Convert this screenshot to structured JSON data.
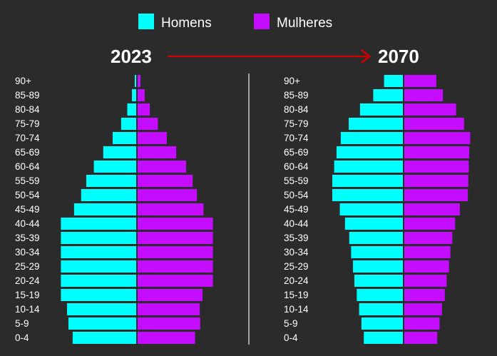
{
  "colors": {
    "background": "#2b2b2b",
    "men": "#00ffff",
    "women": "#c40cff",
    "arrow": "#d40000",
    "divider": "#e0e0e0",
    "text": "#ffffff"
  },
  "chart_data": {
    "type": "bar",
    "orientation": "horizontal-population-pyramid",
    "legend": {
      "placement": "top",
      "entries": [
        "Homens",
        "Mulheres"
      ]
    },
    "transition_arrow": {
      "from": "2023",
      "to": "2070"
    },
    "age_groups": [
      "90+",
      "85-89",
      "80-84",
      "75-79",
      "70-74",
      "65-69",
      "60-64",
      "55-59",
      "50-54",
      "45-49",
      "40-44",
      "35-39",
      "30-34",
      "25-29",
      "20-24",
      "15-19",
      "10-14",
      "5-9",
      "0-4"
    ],
    "grid": false,
    "axes_visible": false,
    "pyramids": [
      {
        "year": "2023",
        "series": [
          {
            "name": "Homens",
            "values": [
              0.3,
              0.9,
              1.9,
              3.2,
              5.0,
              7.0,
              9.0,
              10.6,
              11.7,
              13.2,
              16.0,
              16.0,
              16.0,
              16.0,
              16.0,
              16.0,
              14.7,
              14.4,
              13.5
            ]
          },
          {
            "name": "Mulheres",
            "values": [
              0.6,
              1.5,
              2.6,
              4.3,
              6.2,
              8.2,
              10.3,
              11.7,
              12.6,
              14.0,
              16.0,
              16.0,
              16.0,
              16.0,
              16.0,
              13.8,
              13.2,
              13.3,
              12.2
            ]
          }
        ]
      },
      {
        "year": "2070",
        "series": [
          {
            "name": "Homens",
            "values": [
              4.0,
              6.3,
              9.1,
              11.5,
              13.2,
              14.1,
              14.6,
              15.0,
              15.0,
              13.4,
              12.3,
              11.4,
              11.0,
              10.6,
              10.3,
              9.8,
              9.3,
              8.8,
              8.3
            ]
          },
          {
            "name": "Mulheres",
            "values": [
              6.8,
              8.2,
              11.0,
              12.7,
              14.0,
              13.8,
              13.7,
              13.6,
              13.5,
              11.8,
              10.8,
              10.2,
              9.8,
              9.5,
              9.0,
              8.6,
              8.0,
              7.5,
              7.0
            ]
          }
        ]
      }
    ]
  }
}
